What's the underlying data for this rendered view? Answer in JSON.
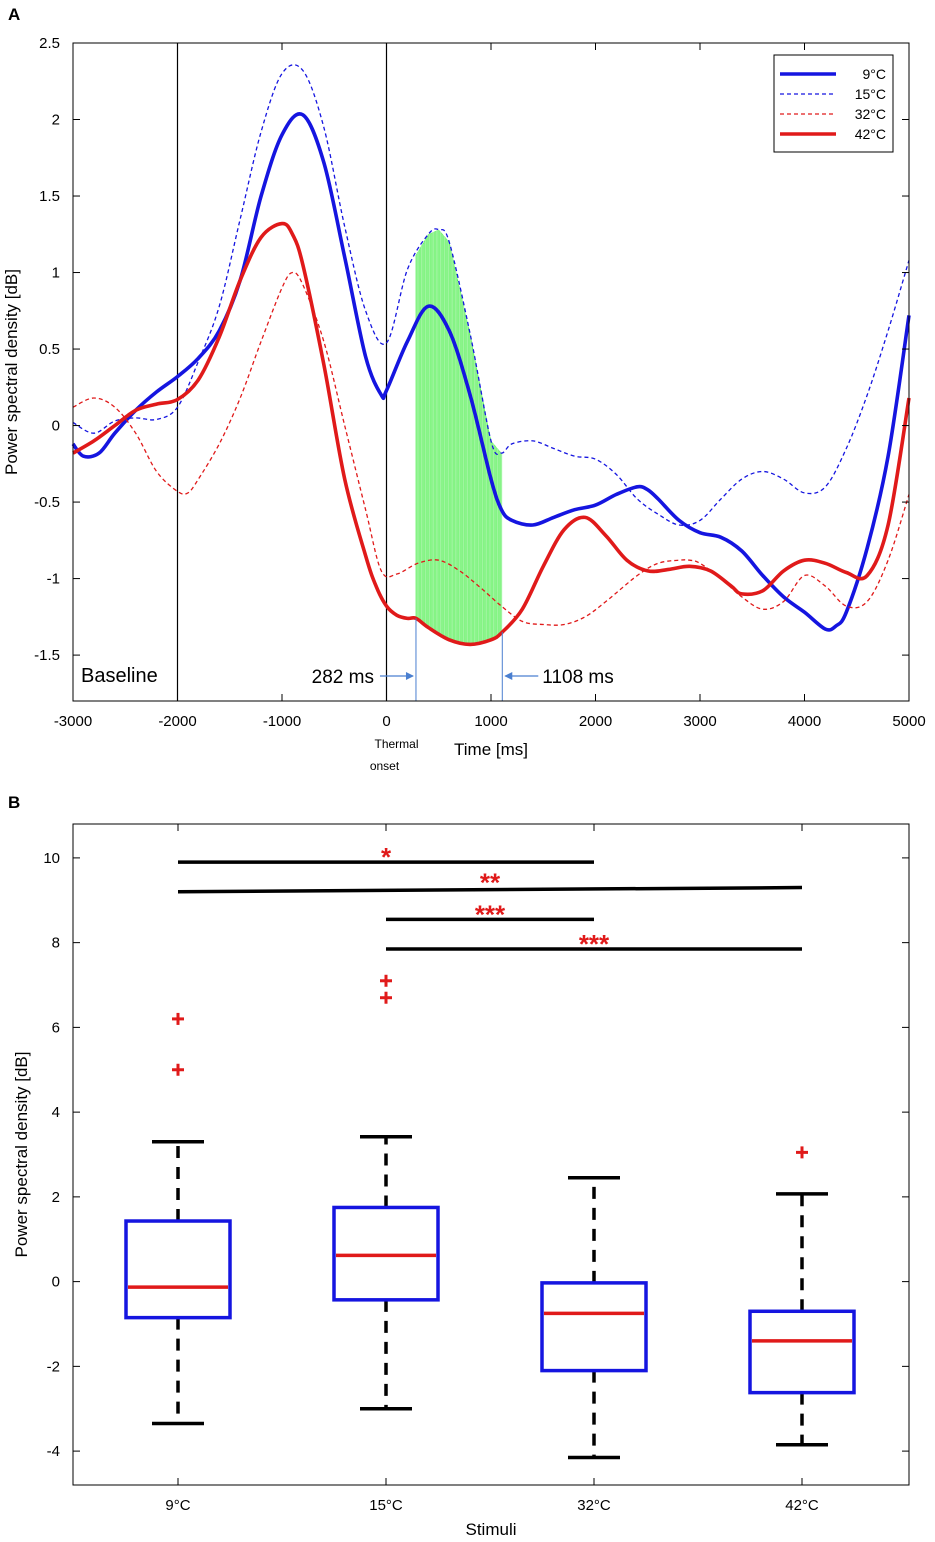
{
  "chart_data": [
    {
      "panel_label": "A",
      "type": "line",
      "xlabel": "Time [ms]",
      "ylabel": "Power spectral density [dB]",
      "xlim": [
        -3000,
        5000
      ],
      "ylim": [
        -1.8,
        2.5
      ],
      "xticks": [
        "-3000",
        "-2000",
        "-1000",
        "0",
        "1000",
        "2000",
        "3000",
        "4000",
        "5000"
      ],
      "yticks": [
        "-1.5",
        "-1",
        "-0.5",
        "0",
        "0.5",
        "1",
        "1.5",
        "2",
        "2.5"
      ],
      "vertical_lines": [
        -2000,
        0
      ],
      "annotations": {
        "baseline": "Baseline",
        "onset_line1": "Thermal",
        "onset_line2": "onset",
        "window_start": "282 ms",
        "window_end": "1108 ms"
      },
      "shaded_window": {
        "from": 282,
        "to": 1108,
        "color": "#22ee22"
      },
      "series": [
        {
          "name": "9°C",
          "color": "#1515e0",
          "style": "solid",
          "x": [
            -3000,
            -2900,
            -2750,
            -2600,
            -2400,
            -2200,
            -2000,
            -1800,
            -1600,
            -1400,
            -1200,
            -1000,
            -800,
            -600,
            -400,
            -200,
            -50,
            0,
            200,
            400,
            600,
            800,
            1000,
            1100,
            1200,
            1400,
            1600,
            1800,
            2000,
            2200,
            2400,
            2500,
            2600,
            2800,
            3000,
            3200,
            3400,
            3600,
            3800,
            4000,
            4200,
            4300,
            4400,
            4600,
            4800,
            5000
          ],
          "y": [
            -0.12,
            -0.2,
            -0.18,
            -0.05,
            0.1,
            0.22,
            0.32,
            0.44,
            0.62,
            0.95,
            1.5,
            1.9,
            2.03,
            1.72,
            1.1,
            0.45,
            0.2,
            0.23,
            0.55,
            0.78,
            0.62,
            0.2,
            -0.35,
            -0.55,
            -0.62,
            -0.65,
            -0.6,
            -0.55,
            -0.52,
            -0.45,
            -0.4,
            -0.42,
            -0.48,
            -0.62,
            -0.7,
            -0.73,
            -0.82,
            -0.98,
            -1.12,
            -1.22,
            -1.33,
            -1.31,
            -1.22,
            -0.8,
            -0.2,
            0.72
          ]
        },
        {
          "name": "15°C",
          "color": "#1515e0",
          "style": "dashed",
          "x": [
            -3000,
            -2800,
            -2600,
            -2400,
            -2200,
            -2000,
            -1800,
            -1600,
            -1400,
            -1200,
            -1000,
            -800,
            -600,
            -400,
            -200,
            0,
            200,
            400,
            500,
            600,
            800,
            1000,
            1100,
            1200,
            1400,
            1600,
            1800,
            2000,
            2200,
            2400,
            2600,
            2800,
            3000,
            3200,
            3400,
            3600,
            3800,
            4000,
            4200,
            4400,
            4600,
            4800,
            5000
          ],
          "y": [
            0.02,
            -0.05,
            0.03,
            0.05,
            0.04,
            0.12,
            0.42,
            0.78,
            1.35,
            1.92,
            2.3,
            2.32,
            1.95,
            1.3,
            0.75,
            0.54,
            1.02,
            1.25,
            1.28,
            1.2,
            0.6,
            -0.1,
            -0.18,
            -0.12,
            -0.1,
            -0.15,
            -0.2,
            -0.22,
            -0.32,
            -0.48,
            -0.58,
            -0.65,
            -0.62,
            -0.48,
            -0.35,
            -0.3,
            -0.35,
            -0.44,
            -0.4,
            -0.15,
            0.2,
            0.62,
            1.08
          ]
        },
        {
          "name": "32°C",
          "color": "#e01a1a",
          "style": "dashed",
          "x": [
            -3000,
            -2800,
            -2600,
            -2400,
            -2200,
            -2000,
            -1900,
            -1800,
            -1600,
            -1400,
            -1200,
            -1000,
            -900,
            -800,
            -600,
            -400,
            -200,
            -50,
            100,
            300,
            500,
            700,
            900,
            1100,
            1300,
            1500,
            1700,
            1900,
            2100,
            2400,
            2600,
            2800,
            2900,
            3000,
            3200,
            3400,
            3600,
            3800,
            4000,
            4200,
            4400,
            4600,
            4800,
            5000
          ],
          "y": [
            0.12,
            0.18,
            0.12,
            -0.05,
            -0.3,
            -0.43,
            -0.44,
            -0.35,
            -0.12,
            0.18,
            0.55,
            0.9,
            1.0,
            0.92,
            0.55,
            0.0,
            -0.55,
            -0.95,
            -0.97,
            -0.9,
            -0.88,
            -0.95,
            -1.06,
            -1.18,
            -1.28,
            -1.3,
            -1.3,
            -1.25,
            -1.15,
            -0.98,
            -0.9,
            -0.88,
            -0.88,
            -0.9,
            -1.0,
            -1.12,
            -1.2,
            -1.15,
            -0.98,
            -1.05,
            -1.18,
            -1.15,
            -0.88,
            -0.45
          ]
        },
        {
          "name": "42°C",
          "color": "#e01a1a",
          "style": "solid",
          "x": [
            -3000,
            -2800,
            -2600,
            -2400,
            -2200,
            -2000,
            -1800,
            -1600,
            -1400,
            -1200,
            -1000,
            -900,
            -800,
            -600,
            -400,
            -200,
            -100,
            0,
            100,
            200,
            282,
            400,
            600,
            800,
            1000,
            1108,
            1300,
            1500,
            1700,
            1900,
            2100,
            2300,
            2500,
            2700,
            2900,
            3100,
            3300,
            3400,
            3600,
            3800,
            4000,
            4200,
            4400,
            4600,
            4800,
            5000
          ],
          "y": [
            -0.18,
            -0.1,
            0.0,
            0.1,
            0.14,
            0.17,
            0.3,
            0.58,
            0.95,
            1.23,
            1.32,
            1.25,
            1.05,
            0.4,
            -0.35,
            -0.85,
            -1.05,
            -1.18,
            -1.24,
            -1.26,
            -1.26,
            -1.32,
            -1.4,
            -1.43,
            -1.4,
            -1.35,
            -1.2,
            -0.92,
            -0.68,
            -0.6,
            -0.72,
            -0.88,
            -0.95,
            -0.94,
            -0.92,
            -0.95,
            -1.05,
            -1.1,
            -1.08,
            -0.95,
            -0.88,
            -0.9,
            -0.96,
            -0.98,
            -0.65,
            0.18
          ]
        }
      ]
    },
    {
      "panel_label": "B",
      "type": "box",
      "xlabel": "Stimuli",
      "ylabel": "Power spectral density [dB]",
      "ylim": [
        -4.8,
        10.8
      ],
      "yticks": [
        "-4",
        "-2",
        "0",
        "2",
        "4",
        "6",
        "8",
        "10"
      ],
      "categories": [
        "9°C",
        "15°C",
        "32°C",
        "42°C"
      ],
      "boxes": [
        {
          "whisker_low": -3.35,
          "q1": -0.85,
          "median": -0.13,
          "q3": 1.43,
          "whisker_high": 3.3,
          "outliers": [
            6.2,
            5.0
          ]
        },
        {
          "whisker_low": -3.0,
          "q1": -0.43,
          "median": 0.62,
          "q3": 1.75,
          "whisker_high": 3.42,
          "outliers": [
            7.1,
            6.7
          ]
        },
        {
          "whisker_low": -4.15,
          "q1": -2.1,
          "median": -0.75,
          "q3": -0.03,
          "whisker_high": 2.45,
          "outliers": []
        },
        {
          "whisker_low": -3.85,
          "q1": -2.62,
          "median": -1.4,
          "q3": -0.7,
          "whisker_high": 2.07,
          "outliers": [
            3.05
          ]
        }
      ],
      "significance": [
        {
          "from": 0,
          "to": 2,
          "y_start": 9.9,
          "y_end": 9.9,
          "label": "*"
        },
        {
          "from": 0,
          "to": 3,
          "y_start": 9.2,
          "y_end": 9.3,
          "label": "**"
        },
        {
          "from": 1,
          "to": 2,
          "y_start": 8.55,
          "y_end": 8.55,
          "label": "***"
        },
        {
          "from": 1,
          "to": 3,
          "y_start": 7.85,
          "y_end": 7.85,
          "label": "***"
        }
      ],
      "colors": {
        "box": "#1515e0",
        "median": "#e01a1a",
        "whisker": "#000000",
        "outlier": "#e01a1a",
        "stars": "#e01a1a"
      }
    }
  ]
}
